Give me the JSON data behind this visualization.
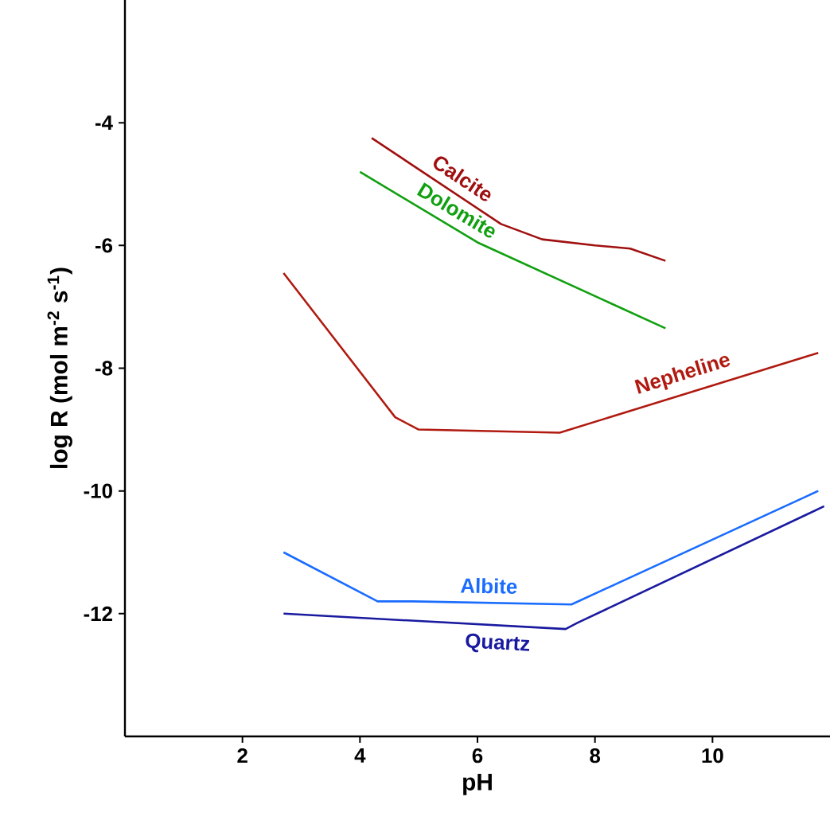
{
  "chart_data": {
    "type": "line",
    "xlabel": "pH",
    "ylabel": "log R (mol m$^{-2}$ s$^{-1}$)",
    "xlim": [
      0,
      12
    ],
    "ylim": [
      -14,
      -2
    ],
    "xticks": [
      2,
      4,
      6,
      8,
      10
    ],
    "yticks": [
      -4,
      -6,
      -8,
      -10,
      -12
    ],
    "series": [
      {
        "name": "Calcite",
        "color": "#a01010",
        "x": [
          4.2,
          6.4,
          7.1,
          8.0,
          8.6,
          9.2
        ],
        "values": [
          -4.25,
          -5.65,
          -5.9,
          -6.0,
          -6.05,
          -6.25
        ]
      },
      {
        "name": "Dolomite",
        "color": "#10a010",
        "x": [
          4.0,
          6.0,
          9.2
        ],
        "values": [
          -4.8,
          -5.95,
          -7.35
        ]
      },
      {
        "name": "Nepheline",
        "color": "#b01a10",
        "x": [
          2.7,
          4.6,
          5.0,
          7.4,
          11.8
        ],
        "values": [
          -6.45,
          -8.8,
          -9.0,
          -9.05,
          -7.75
        ]
      },
      {
        "name": "Albite",
        "color": "#1a6cff",
        "x": [
          2.7,
          4.3,
          4.9,
          7.6,
          11.8
        ],
        "values": [
          -11.0,
          -11.8,
          -11.8,
          -11.85,
          -10.0
        ]
      },
      {
        "name": "Quartz",
        "color": "#1a1aa0",
        "x": [
          2.7,
          7.5,
          7.7,
          11.9
        ],
        "values": [
          -12.0,
          -12.25,
          -12.15,
          -10.25
        ]
      }
    ]
  }
}
